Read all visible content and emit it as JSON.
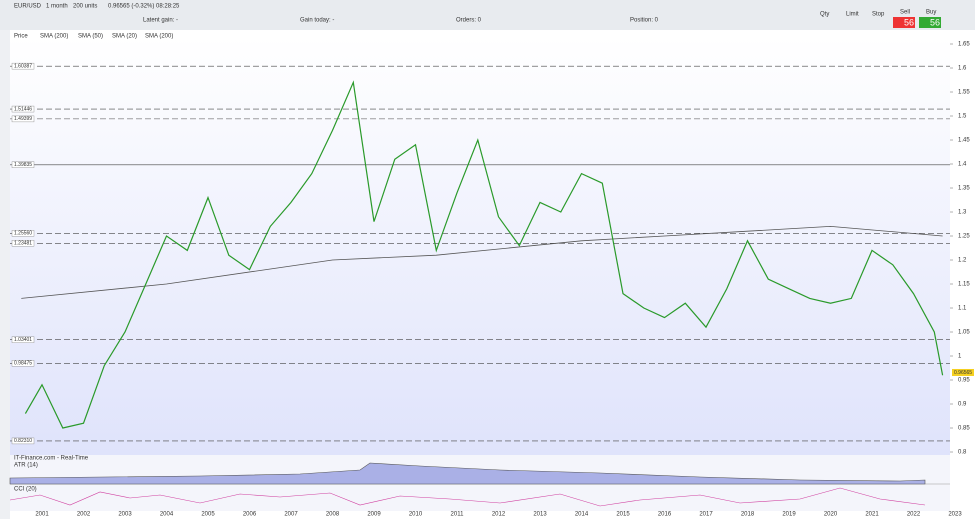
{
  "toolbar": {
    "symbol": "EUR/USD",
    "interval": "1 month",
    "units": "200 units",
    "quote": "0.96565 (-0.32%) 08:28:25",
    "latent": "Latent gain: -",
    "gain_today": "Gain today: -",
    "orders": "Orders: 0",
    "position": "Position: 0",
    "qty": "Qty",
    "limit": "Limit",
    "stop": "Stop",
    "sell": "Sell",
    "buy": "Buy",
    "sell_price": "56",
    "buy_price": "56"
  },
  "legend": [
    "Price",
    "SMA (200)",
    "SMA (50)",
    "SMA (20)",
    "SMA (200)"
  ],
  "chart": {
    "yticks": [
      1.65,
      1.6,
      1.55,
      1.5,
      1.45,
      1.4,
      1.35,
      1.3,
      1.25,
      1.2,
      1.15,
      1.1,
      1.05,
      1,
      0.95,
      0.9,
      0.85,
      0.8
    ],
    "levels": [
      1.60387,
      1.51446,
      1.49399,
      1.39835,
      {
        "value": 1.2556,
        "label": "1.25560"
      },
      1.23481,
      1.03401,
      0.98475,
      {
        "value": 0.8231,
        "label": "0.82310"
      }
    ],
    "current": {
      "value": 0.96565,
      "label": "0.96565"
    },
    "years": [
      "2001",
      "2002",
      "2003",
      "2004",
      "2005",
      "2006",
      "2007",
      "2008",
      "2009",
      "2010",
      "2011",
      "2012",
      "2013",
      "2014",
      "2015",
      "2016",
      "2017",
      "2018",
      "2019",
      "2020",
      "2021",
      "2022",
      "2023"
    ],
    "price": {
      "x": [
        2000.6,
        2001,
        2001.5,
        2002,
        2002.5,
        2003,
        2003.5,
        2004,
        2004.5,
        2005,
        2005.5,
        2006,
        2006.5,
        2007,
        2007.5,
        2008,
        2008.5,
        2009,
        2009.5,
        2010,
        2010.5,
        2011,
        2011.5,
        2012,
        2012.5,
        2013,
        2013.5,
        2014,
        2014.5,
        2015,
        2015.5,
        2016,
        2016.5,
        2017,
        2017.5,
        2018,
        2018.5,
        2019,
        2019.5,
        2020,
        2020.5,
        2021,
        2021.5,
        2022,
        2022.5,
        2022.7
      ],
      "values": [
        0.88,
        0.94,
        0.85,
        0.86,
        0.98,
        1.05,
        1.15,
        1.25,
        1.22,
        1.33,
        1.21,
        1.18,
        1.27,
        1.32,
        1.38,
        1.47,
        1.57,
        1.28,
        1.41,
        1.44,
        1.22,
        1.34,
        1.45,
        1.29,
        1.23,
        1.32,
        1.3,
        1.38,
        1.36,
        1.13,
        1.1,
        1.08,
        1.11,
        1.06,
        1.14,
        1.24,
        1.16,
        1.14,
        1.12,
        1.11,
        1.12,
        1.22,
        1.19,
        1.13,
        1.05,
        0.96
      ]
    },
    "sma200": {
      "x": [
        2000.5,
        2004,
        2008,
        2010.5,
        2014,
        2016,
        2018,
        2020,
        2022.7
      ],
      "values": [
        1.12,
        1.15,
        1.2,
        1.21,
        1.24,
        1.25,
        1.26,
        1.27,
        1.25
      ]
    }
  },
  "panels": {
    "source": "IT-Finance.com - Real-Time",
    "atr": "ATR (14)",
    "cci": "CCI (20)"
  }
}
